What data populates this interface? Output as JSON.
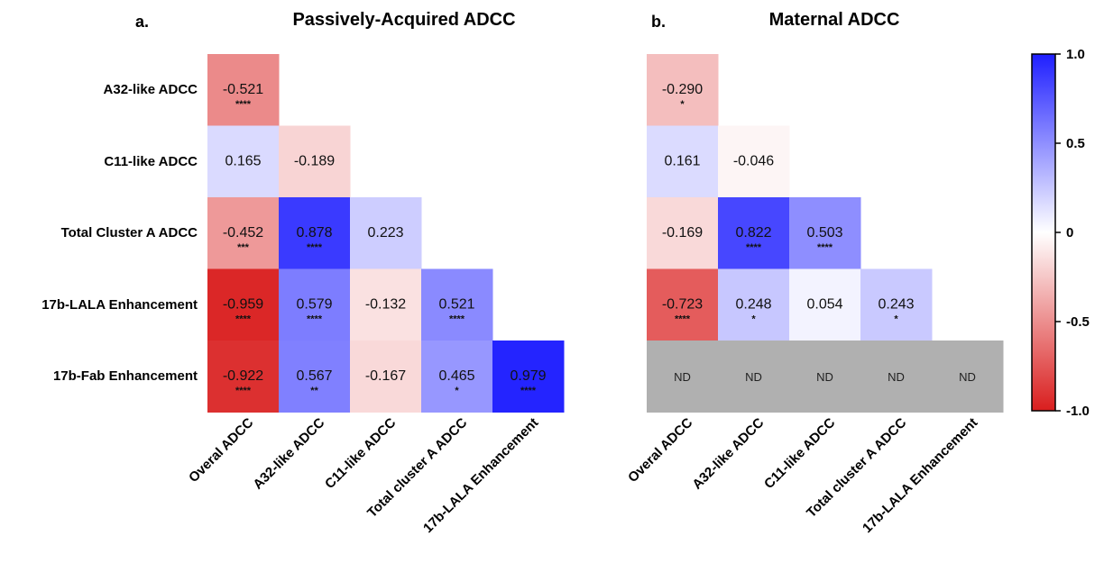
{
  "chart_data": [
    {
      "type": "heatmap",
      "panel_letter": "a.",
      "title": "Passively-Acquired ADCC",
      "rows": [
        "A32-like ADCC",
        "C11-like ADCC",
        "Total Cluster A ADCC",
        "17b-LALA Enhancement",
        "17b-Fab Enhancement"
      ],
      "columns": [
        "Overal ADCC",
        "A32-like ADCC",
        "C11-like ADCC",
        "Total cluster A ADCC",
        "17b-LALA Enhancement"
      ],
      "cells": [
        [
          {
            "value": "-0.521",
            "r": -0.521,
            "sig": "****"
          },
          null,
          null,
          null,
          null
        ],
        [
          {
            "value": "0.165",
            "r": 0.165,
            "sig": ""
          },
          {
            "value": "-0.189",
            "r": -0.189,
            "sig": ""
          },
          null,
          null,
          null
        ],
        [
          {
            "value": "-0.452",
            "r": -0.452,
            "sig": "***"
          },
          {
            "value": "0.878",
            "r": 0.878,
            "sig": "****"
          },
          {
            "value": "0.223",
            "r": 0.223,
            "sig": ""
          },
          null,
          null
        ],
        [
          {
            "value": "-0.959",
            "r": -0.959,
            "sig": "****"
          },
          {
            "value": "0.579",
            "r": 0.579,
            "sig": "****"
          },
          {
            "value": "-0.132",
            "r": -0.132,
            "sig": ""
          },
          {
            "value": "0.521",
            "r": 0.521,
            "sig": "****"
          },
          null
        ],
        [
          {
            "value": "-0.922",
            "r": -0.922,
            "sig": "****"
          },
          {
            "value": "0.567",
            "r": 0.567,
            "sig": "**"
          },
          {
            "value": "-0.167",
            "r": -0.167,
            "sig": ""
          },
          {
            "value": "0.465",
            "r": 0.465,
            "sig": "*"
          },
          {
            "value": "0.979",
            "r": 0.979,
            "sig": "****"
          }
        ]
      ]
    },
    {
      "type": "heatmap",
      "panel_letter": "b.",
      "title": "Maternal ADCC",
      "rows": [
        "A32-like ADCC",
        "C11-like ADCC",
        "Total Cluster A ADCC",
        "17b-LALA Enhancement",
        "17b-Fab Enhancement"
      ],
      "columns": [
        "Overal ADCC",
        "A32-like ADCC",
        "C11-like ADCC",
        "Total cluster A ADCC",
        "17b-LALA Enhancement"
      ],
      "cells": [
        [
          {
            "value": "-0.290",
            "r": -0.29,
            "sig": "*"
          },
          null,
          null,
          null,
          null
        ],
        [
          {
            "value": "0.161",
            "r": 0.161,
            "sig": ""
          },
          {
            "value": "-0.046",
            "r": -0.046,
            "sig": ""
          },
          null,
          null,
          null
        ],
        [
          {
            "value": "-0.169",
            "r": -0.169,
            "sig": ""
          },
          {
            "value": "0.822",
            "r": 0.822,
            "sig": "****"
          },
          {
            "value": "0.503",
            "r": 0.503,
            "sig": "****"
          },
          null,
          null
        ],
        [
          {
            "value": "-0.723",
            "r": -0.723,
            "sig": "****"
          },
          {
            "value": "0.248",
            "r": 0.248,
            "sig": "*"
          },
          {
            "value": "0.054",
            "r": 0.054,
            "sig": ""
          },
          {
            "value": "0.243",
            "r": 0.243,
            "sig": "*"
          },
          null
        ],
        [
          {
            "value": "ND",
            "r": null,
            "sig": "",
            "nd": true
          },
          {
            "value": "ND",
            "r": null,
            "sig": "",
            "nd": true
          },
          {
            "value": "ND",
            "r": null,
            "sig": "",
            "nd": true
          },
          {
            "value": "ND",
            "r": null,
            "sig": "",
            "nd": true
          },
          {
            "value": "ND",
            "r": null,
            "sig": "",
            "nd": true
          }
        ]
      ]
    }
  ],
  "colorbar": {
    "ticks": [
      "1.0",
      "0.5",
      "0",
      "-0.5",
      "-1.0"
    ],
    "tick_values": [
      1.0,
      0.5,
      0,
      -0.5,
      -1.0
    ],
    "range": [
      -1.0,
      1.0
    ],
    "colors": {
      "positive": "#1f1fff",
      "zero": "#ffffff",
      "negative": "#d91e1e",
      "nd": "#b0b0b0"
    }
  }
}
